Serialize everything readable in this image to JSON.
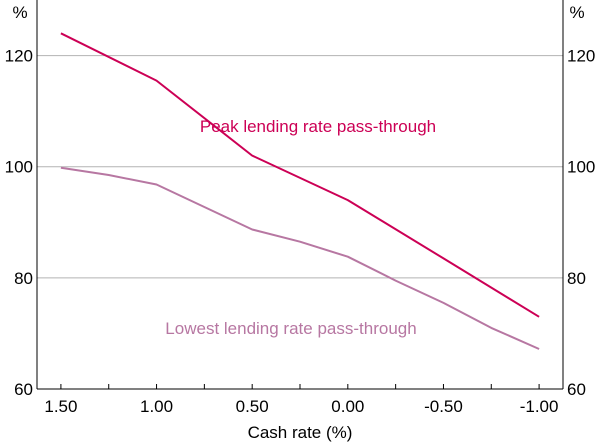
{
  "chart_data": {
    "type": "line",
    "title": "",
    "xlabel": "Cash rate (%)",
    "ylabel_left": "%",
    "ylabel_right": "%",
    "xlim": [
      1.625,
      -1.125
    ],
    "ylim": [
      60,
      130
    ],
    "x_ticks": [
      1.5,
      1.0,
      0.5,
      0.0,
      -0.5,
      -1.0
    ],
    "x_tick_labels": [
      "1.50",
      "1.00",
      "0.50",
      "0.00",
      "-0.50",
      "-1.00"
    ],
    "y_ticks": [
      60,
      80,
      100,
      120
    ],
    "y_tick_labels": [
      "60",
      "80",
      "100",
      "120"
    ],
    "gridlines": true,
    "colors": {
      "peak": "#cc0055",
      "lowest": "#b777a2",
      "grid": "#b3b3b3",
      "axis": "#000000"
    },
    "series": [
      {
        "id": "peak",
        "name": "Peak lending rate pass-through",
        "color": "#cc0055",
        "x": [
          1.5,
          1.0,
          0.5,
          0.0,
          -0.5,
          -1.0
        ],
        "values": [
          124,
          115.5,
          102,
          94,
          83.5,
          73
        ]
      },
      {
        "id": "lowest",
        "name": "Lowest lending rate pass-through",
        "color": "#b777a2",
        "x": [
          1.5,
          1.25,
          1.0,
          0.5,
          0.25,
          0.0,
          -0.25,
          -0.5,
          -0.75,
          -1.0
        ],
        "values": [
          99.8,
          98.5,
          96.8,
          88.7,
          86.5,
          83.8,
          79.5,
          75.5,
          71,
          67.2
        ]
      }
    ]
  }
}
